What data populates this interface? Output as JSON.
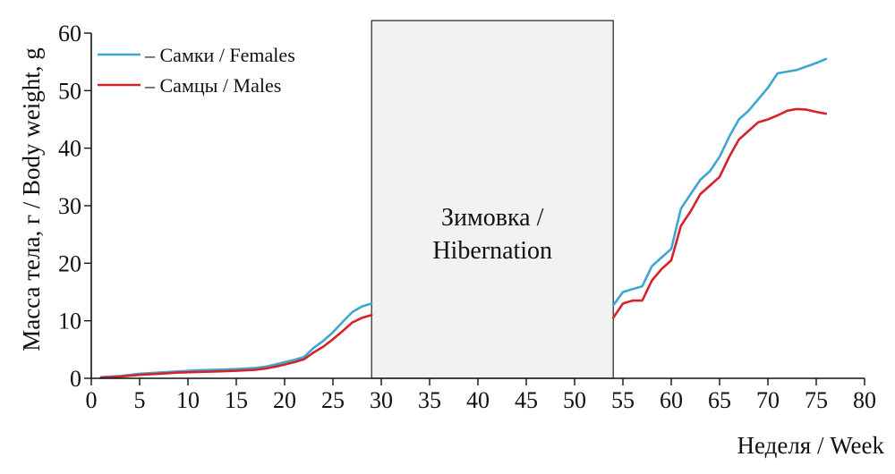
{
  "chart_data": {
    "type": "line",
    "xlabel": "Неделя / Week",
    "ylabel": "Масса тела, г / Body weight, g",
    "xlim": [
      0,
      80
    ],
    "ylim": [
      0,
      60
    ],
    "x_ticks": [
      "0",
      "5",
      "10",
      "15",
      "20",
      "25",
      "30",
      "35",
      "40",
      "45",
      "50",
      "55",
      "60",
      "65",
      "70",
      "75",
      "80"
    ],
    "y_ticks": [
      "0",
      "10",
      "20",
      "30",
      "40",
      "50",
      "60"
    ],
    "grid": false,
    "legend_position": "top-left",
    "colors": {
      "females": "#3ea6d1",
      "males": "#d4232a",
      "box_fill": "#f1f3f3",
      "axis": "#111111"
    },
    "series": [
      {
        "name": "– Самки / Females",
        "color": "#3ea6d1",
        "x": [
          1,
          3,
          5,
          7,
          9,
          11,
          13,
          15,
          17,
          18,
          19,
          20,
          21,
          22,
          23,
          24,
          25,
          26,
          27,
          28,
          29,
          54,
          55,
          56,
          57,
          58,
          59,
          60,
          61,
          62,
          63,
          64,
          65,
          66,
          67,
          68,
          69,
          70,
          71,
          72,
          73,
          74,
          75,
          76
        ],
        "y": [
          0.2,
          0.4,
          0.8,
          1.0,
          1.2,
          1.4,
          1.5,
          1.6,
          1.8,
          2.0,
          2.4,
          2.8,
          3.2,
          3.7,
          5.3,
          6.5,
          8.0,
          9.8,
          11.5,
          12.5,
          13.0,
          12.7,
          15.0,
          15.5,
          16.0,
          19.5,
          21.0,
          22.5,
          29.5,
          32.0,
          34.5,
          36.0,
          38.5,
          42.0,
          45.0,
          46.5,
          48.5,
          50.5,
          53.0,
          53.3,
          53.6,
          54.2,
          54.8,
          55.5
        ]
      },
      {
        "name": "– Самцы / Males",
        "color": "#d4232a",
        "x": [
          1,
          3,
          5,
          7,
          9,
          11,
          13,
          15,
          17,
          18,
          19,
          20,
          21,
          22,
          23,
          24,
          25,
          26,
          27,
          28,
          29,
          54,
          55,
          56,
          57,
          58,
          59,
          60,
          61,
          62,
          63,
          64,
          65,
          66,
          67,
          68,
          69,
          70,
          71,
          72,
          73,
          74,
          75,
          76
        ],
        "y": [
          0.1,
          0.3,
          0.6,
          0.8,
          1.0,
          1.1,
          1.2,
          1.3,
          1.5,
          1.7,
          2.0,
          2.4,
          2.8,
          3.3,
          4.5,
          5.5,
          6.8,
          8.2,
          9.7,
          10.5,
          11.0,
          10.5,
          13.0,
          13.5,
          13.5,
          17.0,
          19.0,
          20.5,
          26.5,
          29.0,
          32.0,
          33.5,
          35.0,
          38.5,
          41.5,
          43.0,
          44.5,
          45.0,
          45.7,
          46.5,
          46.8,
          46.7,
          46.3,
          46.0
        ]
      }
    ],
    "hibernation_box": {
      "x_start": 29,
      "x_end": 54,
      "label_line1": "Зимовка /",
      "label_line2": "Hibernation"
    }
  }
}
